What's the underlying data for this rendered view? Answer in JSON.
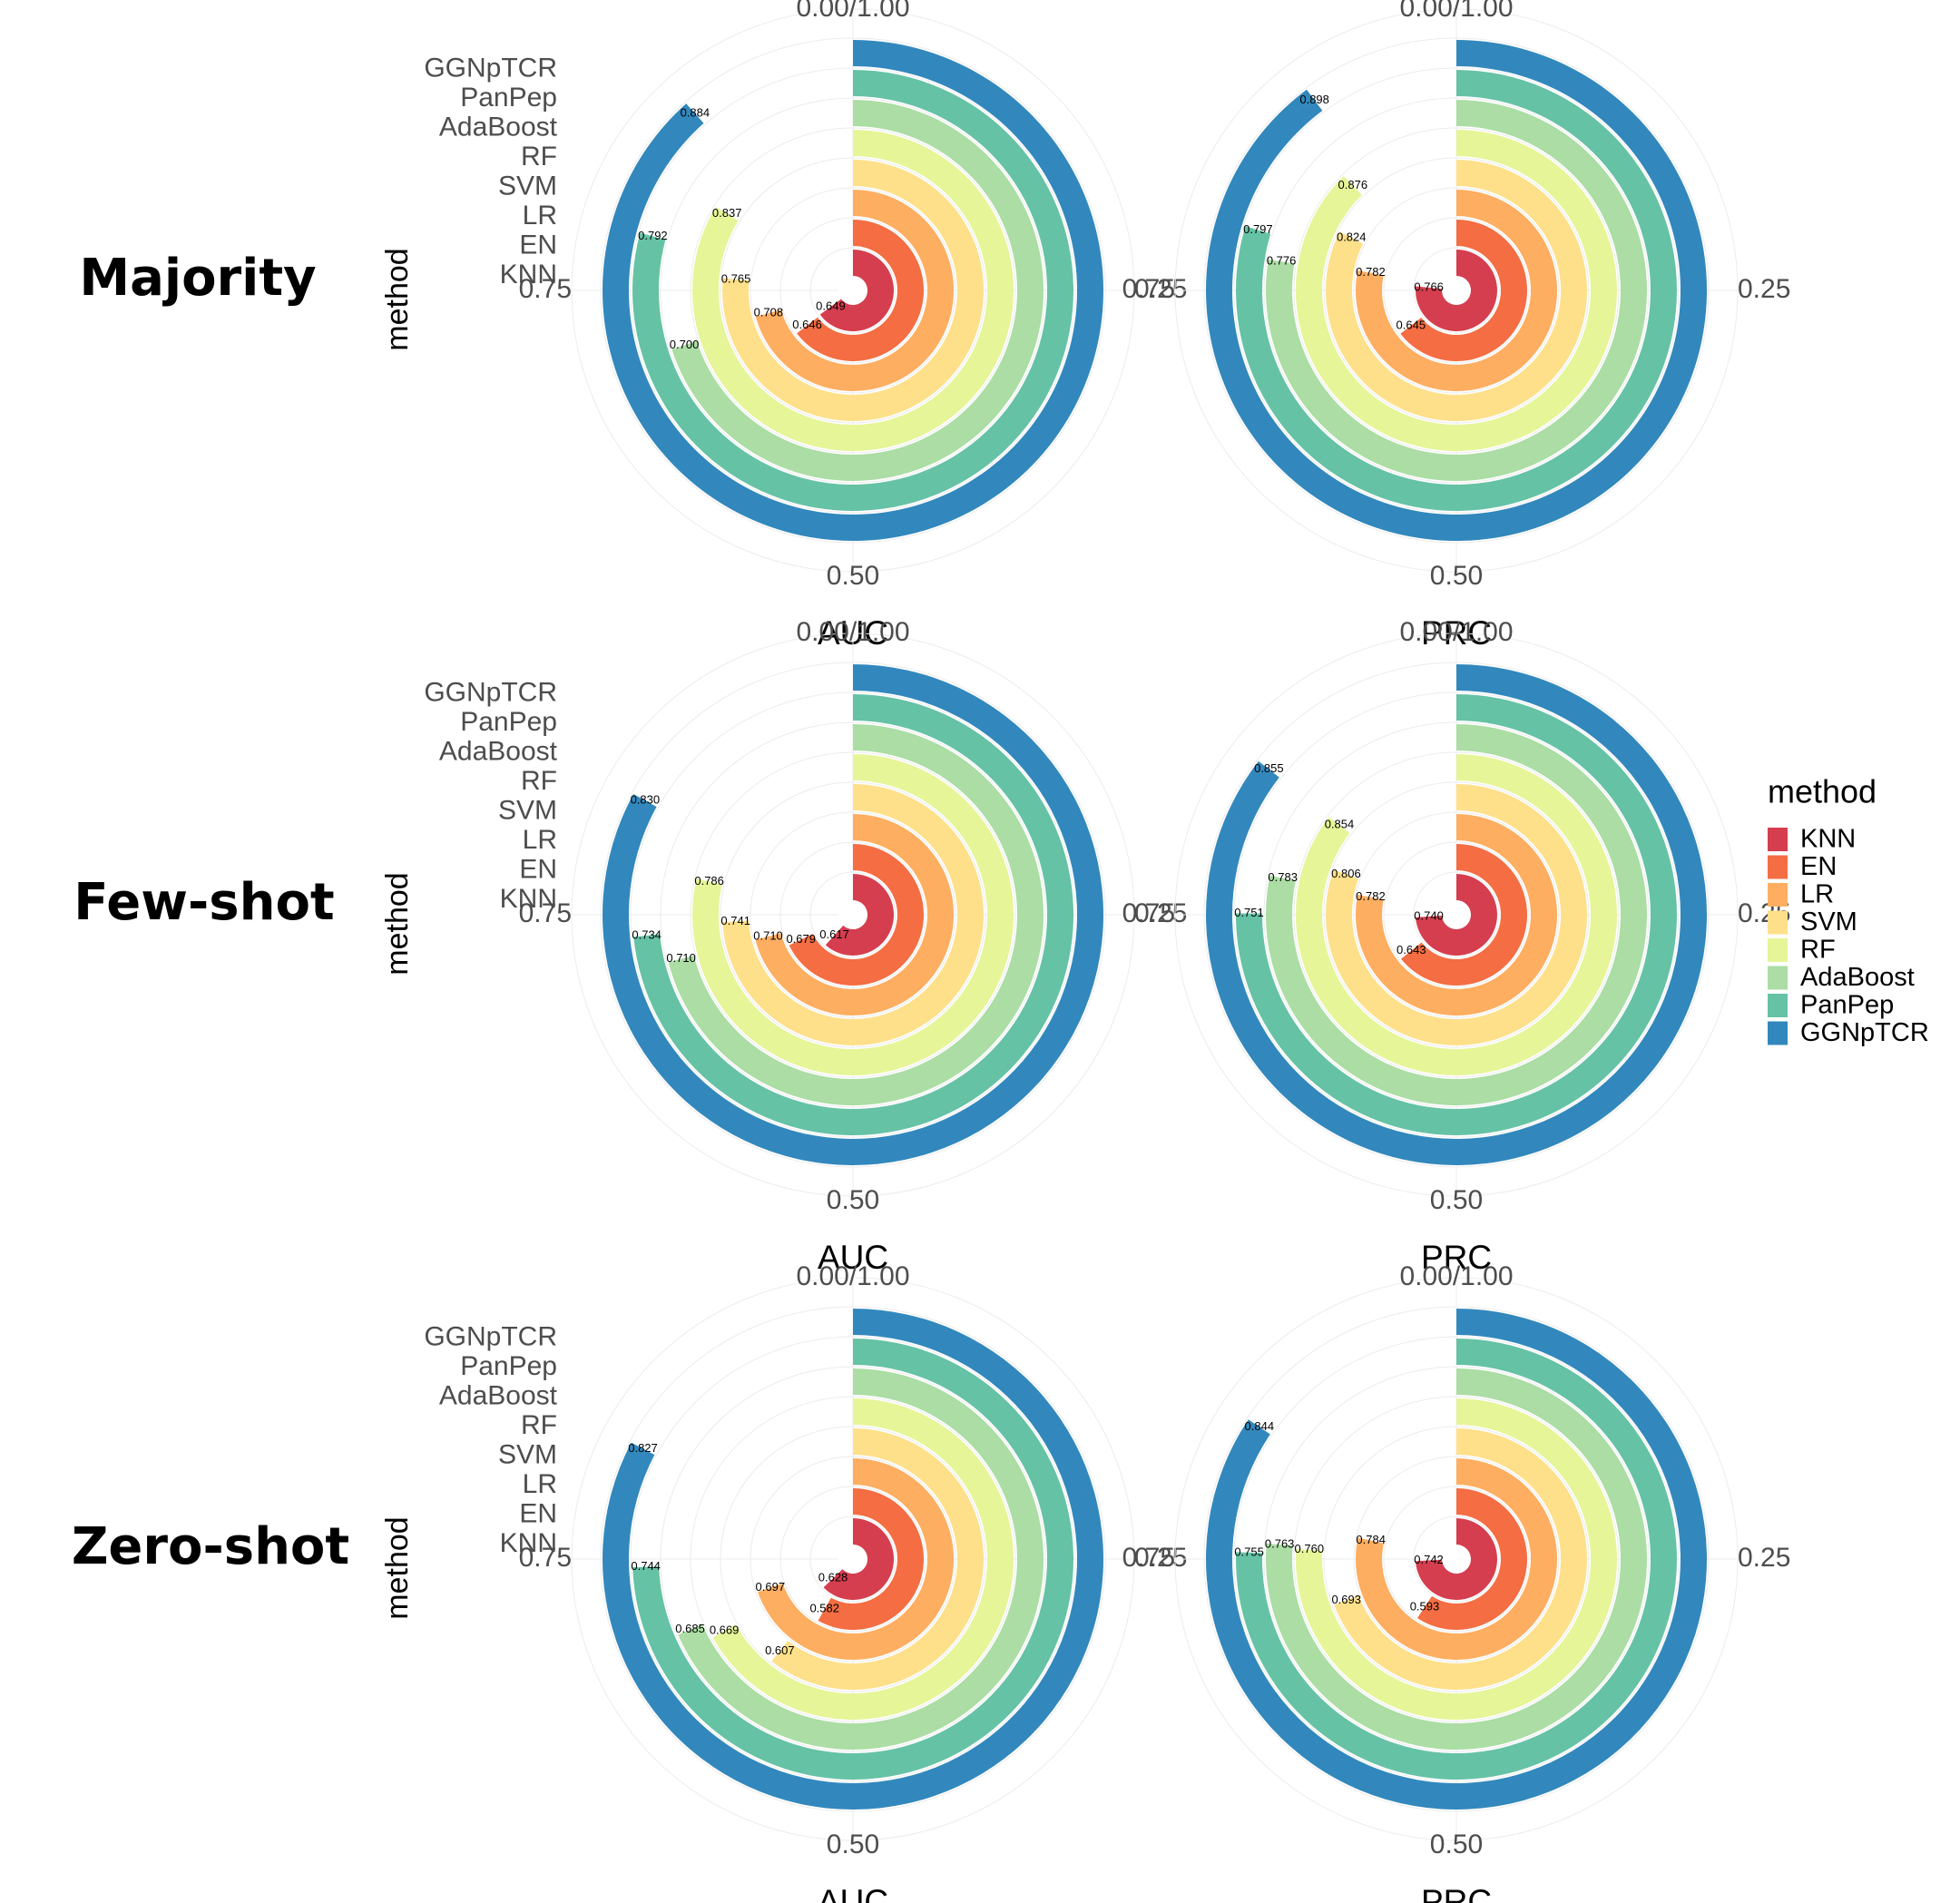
{
  "chart_data": {
    "type": "radial-bar",
    "methods": [
      "KNN",
      "EN",
      "LR",
      "SVM",
      "RF",
      "AdaBoost",
      "PanPep",
      "GGNpTCR"
    ],
    "colors": [
      "#d53e4f",
      "#f46d43",
      "#fdae61",
      "#fee08b",
      "#e6f598",
      "#abdda4",
      "#66c2a5",
      "#3288bd"
    ],
    "legend": {
      "title": "method",
      "position": "right"
    },
    "y_axis_label": "method",
    "angle_ticks": [
      {
        "value": 0.0,
        "label": "0.00/1.00"
      },
      {
        "value": 0.25,
        "label": "0.25"
      },
      {
        "value": 0.5,
        "label": "0.50"
      },
      {
        "value": 0.75,
        "label": "0.75"
      }
    ],
    "angle_range": [
      0,
      1
    ],
    "panels": [
      {
        "row": "Majority",
        "metric": "AUC",
        "values": {
          "KNN": 0.649,
          "EN": 0.646,
          "LR": 0.708,
          "SVM": 0.765,
          "RF": 0.837,
          "AdaBoost": 0.7,
          "PanPep": 0.792,
          "GGNpTCR": 0.884
        }
      },
      {
        "row": "Majority",
        "metric": "PRC",
        "values": {
          "KNN": 0.766,
          "EN": 0.645,
          "LR": 0.782,
          "SVM": 0.824,
          "RF": 0.876,
          "AdaBoost": 0.776,
          "PanPep": 0.797,
          "GGNpTCR": 0.898
        }
      },
      {
        "row": "Few-shot",
        "metric": "AUC",
        "values": {
          "KNN": 0.617,
          "EN": 0.679,
          "LR": 0.71,
          "SVM": 0.741,
          "RF": 0.786,
          "AdaBoost": 0.71,
          "PanPep": 0.734,
          "GGNpTCR": 0.83
        }
      },
      {
        "row": "Few-shot",
        "metric": "PRC",
        "values": {
          "KNN": 0.74,
          "EN": 0.643,
          "LR": 0.782,
          "SVM": 0.806,
          "RF": 0.854,
          "AdaBoost": 0.783,
          "PanPep": 0.751,
          "GGNpTCR": 0.855
        }
      },
      {
        "row": "Zero-shot",
        "metric": "AUC",
        "values": {
          "KNN": 0.628,
          "EN": 0.582,
          "LR": 0.697,
          "SVM": 0.607,
          "RF": 0.669,
          "AdaBoost": 0.685,
          "PanPep": 0.744,
          "GGNpTCR": 0.827
        }
      },
      {
        "row": "Zero-shot",
        "metric": "PRC",
        "values": {
          "KNN": 0.742,
          "EN": 0.593,
          "LR": 0.784,
          "SVM": 0.693,
          "RF": 0.76,
          "AdaBoost": 0.763,
          "PanPep": 0.755,
          "GGNpTCR": 0.844
        }
      }
    ]
  }
}
